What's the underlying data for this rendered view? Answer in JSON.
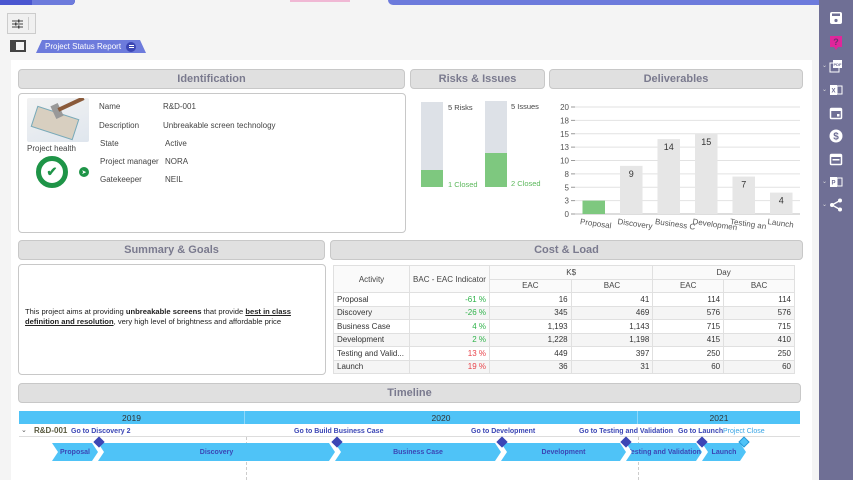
{
  "toolbar": {
    "report_tab_label": "Project Status Report"
  },
  "sidebar_icons": [
    "save-icon",
    "help-icon",
    "pdf-export-icon",
    "excel-export-icon",
    "calendar-icon",
    "dollar-icon",
    "schedule-icon",
    "powerpoint-export-icon",
    "share-icon"
  ],
  "sections": {
    "identification": "Identification",
    "risks": "Risks & Issues",
    "deliverables": "Deliverables",
    "summary": "Summary & Goals",
    "cost": "Cost & Load",
    "timeline": "Timeline"
  },
  "identification": {
    "health_label": "Project health",
    "health_status": "good",
    "fields": [
      {
        "label": "Name",
        "value": "R&D-001"
      },
      {
        "label": "Description",
        "value": "Unbreakable screen technology"
      },
      {
        "label": "State",
        "value": "Active"
      },
      {
        "label": "Project manager",
        "value": "NORA"
      },
      {
        "label": "Gatekeeper",
        "value": "NEIL"
      }
    ]
  },
  "risks": {
    "risks_total_label": "5 Risks",
    "risks_closed_label": "1 Closed",
    "risks_total": 5,
    "risks_closed": 1,
    "issues_total_label": "5 Issues",
    "issues_closed_label": "2 Closed",
    "issues_total": 5,
    "issues_closed": 2
  },
  "chart_data": {
    "type": "bar",
    "title": "Deliverables",
    "categories": [
      "Proposal",
      "Discovery",
      "Business C",
      "Developmen",
      "Testing an",
      "Launch"
    ],
    "values": [
      2.5,
      9,
      14,
      15,
      7,
      4
    ],
    "data_labels": [
      "",
      "9",
      "14",
      "15",
      "7",
      "4"
    ],
    "highlight_index": 0,
    "colors": {
      "highlight": "#7ec87f",
      "default": "#e6e6e6"
    },
    "yticks": [
      "0",
      "3",
      "5",
      "8",
      "10",
      "13",
      "15",
      "18",
      "20"
    ],
    "ylim": [
      0,
      20
    ],
    "xlabel": "",
    "ylabel": "",
    "grid": true
  },
  "summary": {
    "p1": "This project aims at providing ",
    "b1": "unbreakable screens",
    "p2": " that provide ",
    "u1": "best in class definition and resolution",
    "p3": ", very high level of brightness and affordable price"
  },
  "cost_table": {
    "headers": {
      "activity": "Activity",
      "indicator": "BAC - EAC Indicator",
      "group_k": "K$",
      "group_day": "Day",
      "eac": "EAC",
      "bac": "BAC"
    },
    "rows": [
      {
        "activity": "Proposal",
        "indicator": "-61 %",
        "trend": "pos",
        "k_eac": "16",
        "k_bac": "41",
        "d_eac": "114",
        "d_bac": "114"
      },
      {
        "activity": "Discovery",
        "indicator": "-26 %",
        "trend": "pos",
        "k_eac": "345",
        "k_bac": "469",
        "d_eac": "576",
        "d_bac": "576"
      },
      {
        "activity": "Business Case",
        "indicator": "4 %",
        "trend": "pos",
        "k_eac": "1,193",
        "k_bac": "1,143",
        "d_eac": "715",
        "d_bac": "715"
      },
      {
        "activity": "Development",
        "indicator": "2 %",
        "trend": "pos",
        "k_eac": "1,228",
        "k_bac": "1,198",
        "d_eac": "415",
        "d_bac": "410"
      },
      {
        "activity": "Testing and Valid...",
        "indicator": "13 %",
        "trend": "neg",
        "k_eac": "449",
        "k_bac": "397",
        "d_eac": "250",
        "d_bac": "250"
      },
      {
        "activity": "Launch",
        "indicator": "19 %",
        "trend": "neg",
        "k_eac": "36",
        "k_bac": "31",
        "d_eac": "60",
        "d_bac": "60"
      }
    ]
  },
  "timeline": {
    "years": [
      "2019",
      "2020",
      "2021"
    ],
    "project": "R&D-001",
    "milestones": [
      "Go to Discovery 2",
      "Go to Build Business Case",
      "Go to Development",
      "Go to Testing and Validation",
      "Go to Launch",
      "Project Close"
    ],
    "phases": [
      "Proposal",
      "Discovery",
      "Business Case",
      "Development",
      "Testing and Validation",
      "Launch"
    ]
  }
}
